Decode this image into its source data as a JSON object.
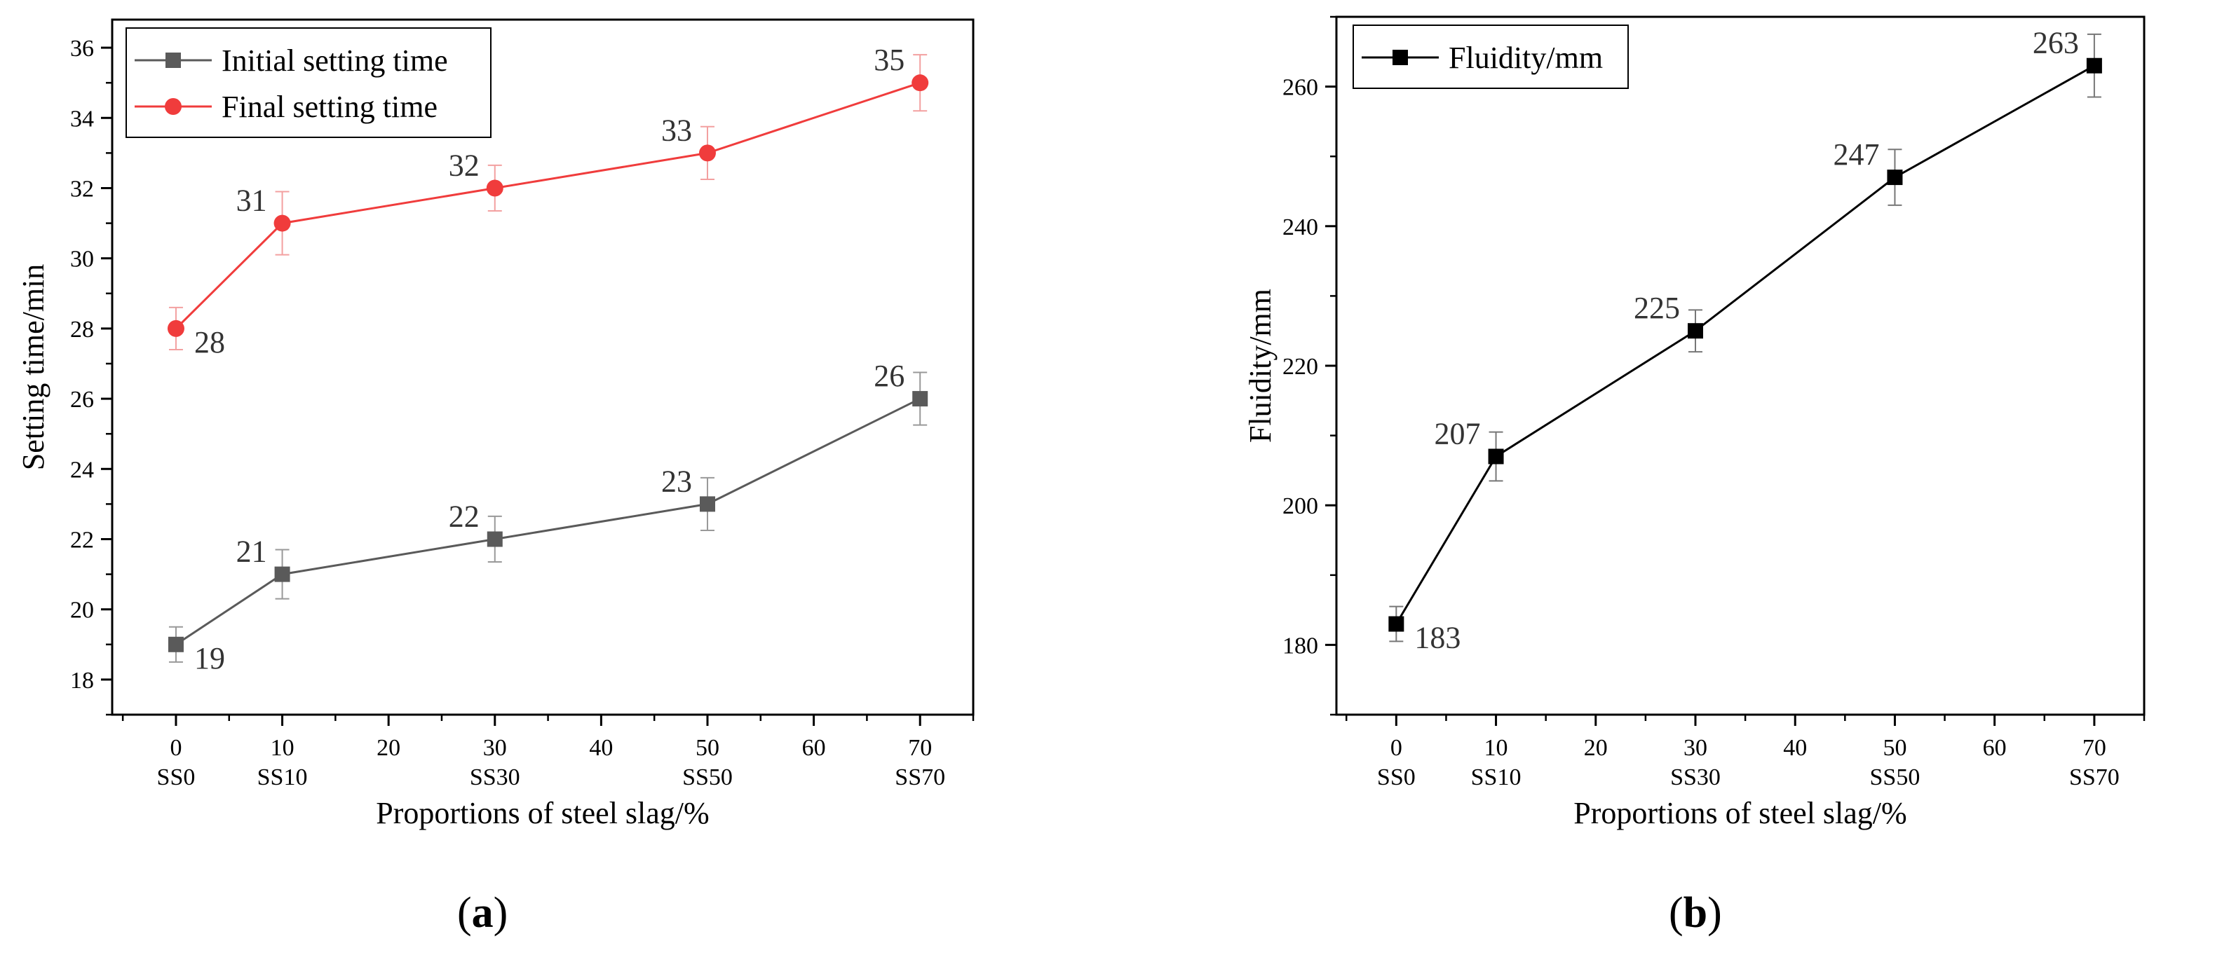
{
  "panels": [
    {
      "label_open": "(",
      "label_letter": "a",
      "label_close": ")",
      "chart_data": {
        "type": "line",
        "xlabel": "Proportions of steel slag/%",
        "ylabel": "Setting time/min",
        "xlim": [
          -6,
          75
        ],
        "ylim": [
          17,
          36.8
        ],
        "x_ticks": [
          0,
          10,
          20,
          30,
          40,
          50,
          60,
          70
        ],
        "x_tick_labels": [
          "0",
          "10",
          "20",
          "30",
          "40",
          "50",
          "60",
          "70"
        ],
        "x_sub_labels": [
          {
            "x": 0,
            "text": "SS0"
          },
          {
            "x": 10,
            "text": "SS10"
          },
          {
            "x": 30,
            "text": "SS30"
          },
          {
            "x": 50,
            "text": "SS50"
          },
          {
            "x": 70,
            "text": "SS70"
          }
        ],
        "y_ticks": [
          18,
          20,
          22,
          24,
          26,
          28,
          30,
          32,
          34,
          36
        ],
        "y_tick_labels": [
          "18",
          "20",
          "22",
          "24",
          "26",
          "28",
          "30",
          "32",
          "34",
          "36"
        ],
        "legend_position": "top-left",
        "grid": false,
        "series": [
          {
            "name": "Initial setting time",
            "color": "#5a5a5a",
            "marker": "square",
            "x": [
              0,
              10,
              30,
              50,
              70
            ],
            "y": [
              19,
              21,
              22,
              23,
              26
            ],
            "error": [
              0.5,
              0.7,
              0.65,
              0.75,
              0.75
            ],
            "data_labels": [
              "19",
              "21",
              "22",
              "23",
              "26"
            ],
            "label_side": [
              "right-below",
              "left-above",
              "left-above",
              "left-above",
              "left-above"
            ]
          },
          {
            "name": "Final setting time",
            "color": "#f03c3c",
            "marker": "circle",
            "x": [
              0,
              10,
              30,
              50,
              70
            ],
            "y": [
              28,
              31,
              32,
              33,
              35
            ],
            "error": [
              0.6,
              0.9,
              0.65,
              0.75,
              0.8
            ],
            "data_labels": [
              "28",
              "31",
              "32",
              "33",
              "35"
            ],
            "label_side": [
              "right-below",
              "left-above",
              "left-above",
              "left-above",
              "left-above"
            ]
          }
        ]
      }
    },
    {
      "label_open": "(",
      "label_letter": "b",
      "label_close": ")",
      "chart_data": {
        "type": "line",
        "xlabel": "Proportions of steel slag/%",
        "ylabel": "Fluidity/mm",
        "xlim": [
          -6,
          75
        ],
        "ylim": [
          170,
          270
        ],
        "x_ticks": [
          0,
          10,
          20,
          30,
          40,
          50,
          60,
          70
        ],
        "x_tick_labels": [
          "0",
          "10",
          "20",
          "30",
          "40",
          "50",
          "60",
          "70"
        ],
        "x_sub_labels": [
          {
            "x": 0,
            "text": "SS0"
          },
          {
            "x": 10,
            "text": "SS10"
          },
          {
            "x": 30,
            "text": "SS30"
          },
          {
            "x": 50,
            "text": "SS50"
          },
          {
            "x": 70,
            "text": "SS70"
          }
        ],
        "y_ticks": [
          180,
          200,
          220,
          240,
          260
        ],
        "y_tick_labels": [
          "180",
          "200",
          "220",
          "240",
          "260"
        ],
        "legend_position": "top-left",
        "grid": false,
        "series": [
          {
            "name": "Fluidity/mm",
            "color": "#000000",
            "marker": "square",
            "x": [
              0,
              10,
              30,
              50,
              70
            ],
            "y": [
              183,
              207,
              225,
              247,
              263
            ],
            "error": [
              2.5,
              3.5,
              3,
              4,
              4.5
            ],
            "data_labels": [
              "183",
              "207",
              "225",
              "247",
              "263"
            ],
            "label_side": [
              "right-below",
              "left-above",
              "left-above",
              "left-above",
              "left-above"
            ]
          }
        ]
      }
    }
  ]
}
